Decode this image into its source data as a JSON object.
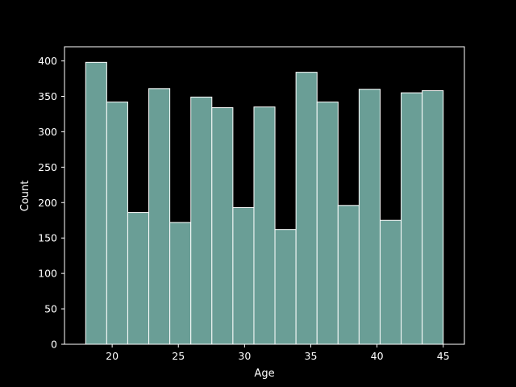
{
  "chart_data": {
    "type": "histogram",
    "title": "",
    "xlabel": "Age",
    "ylabel": "Count",
    "xlim": [
      16.4,
      46.6
    ],
    "ylim": [
      0,
      420
    ],
    "x_ticks": [
      20,
      25,
      30,
      35,
      40,
      45
    ],
    "y_ticks": [
      0,
      50,
      100,
      150,
      200,
      250,
      300,
      350,
      400
    ],
    "bin_edges": [
      18.0,
      19.588,
      21.176,
      22.765,
      24.353,
      25.941,
      27.529,
      29.118,
      30.706,
      32.294,
      33.882,
      35.471,
      37.059,
      38.647,
      40.235,
      41.824,
      43.412,
      45.0
    ],
    "values": [
      398,
      342,
      186,
      361,
      172,
      349,
      334,
      193,
      335,
      162,
      384,
      342,
      196,
      360,
      175,
      355,
      358
    ],
    "colors": {
      "bar_fill": "#6a9e96",
      "bar_edge": "#ffffff",
      "axes": "#ffffff",
      "background": "#000000"
    },
    "grid": false,
    "legend": "none"
  }
}
